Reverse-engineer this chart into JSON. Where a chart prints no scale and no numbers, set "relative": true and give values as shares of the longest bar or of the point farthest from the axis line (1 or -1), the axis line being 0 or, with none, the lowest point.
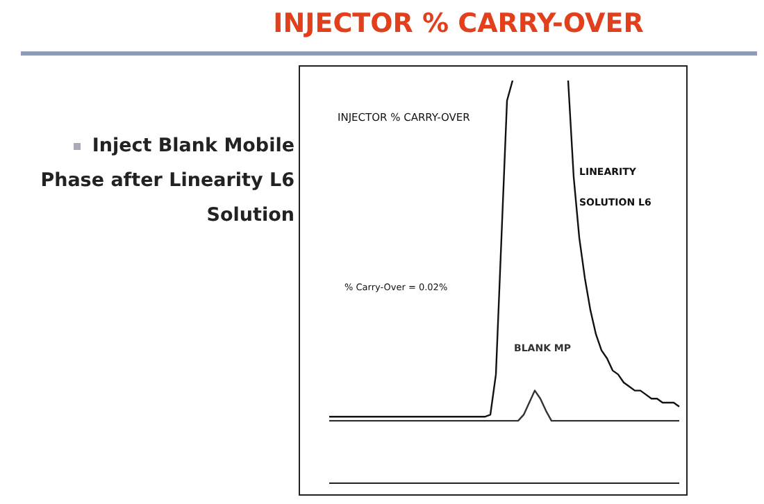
{
  "chart_data": {
    "type": "line",
    "title": "INJECTOR % CARRY-OVER",
    "relative": true,
    "tick_labels": false,
    "grid": false,
    "legend": false,
    "marker": "none",
    "line_style": "solid",
    "categories": [
      null,
      null,
      null,
      null,
      null,
      null,
      null,
      null,
      null,
      null,
      null,
      null,
      null,
      null,
      null,
      null,
      null,
      null,
      null,
      null,
      null,
      null,
      null,
      null,
      null,
      null,
      null,
      null,
      null,
      null,
      null,
      null,
      null,
      null,
      null,
      null,
      null,
      null,
      null,
      null,
      null,
      null,
      null,
      null,
      null,
      null,
      null,
      null,
      null,
      null,
      null,
      null,
      null,
      null,
      null,
      null,
      null,
      null,
      null,
      null,
      null,
      null,
      null,
      null
    ],
    "series": [
      {
        "name": "LINEARITY SOLUTION L6",
        "color": "#111111",
        "values": [
          0.165,
          0.165,
          0.165,
          0.165,
          0.165,
          0.165,
          0.165,
          0.165,
          0.165,
          0.165,
          0.165,
          0.165,
          0.165,
          0.165,
          0.165,
          0.165,
          0.165,
          0.165,
          0.165,
          0.165,
          0.165,
          0.165,
          0.165,
          0.165,
          0.165,
          0.165,
          0.165,
          0.165,
          0.165,
          0.17,
          0.27,
          0.61,
          0.95,
          1,
          null,
          null,
          null,
          null,
          null,
          null,
          null,
          null,
          null,
          1,
          0.76,
          0.61,
          0.51,
          0.43,
          0.37,
          0.33,
          0.31,
          0.28,
          0.27,
          0.25,
          0.24,
          0.23,
          0.23,
          0.22,
          0.21,
          0.21,
          0.2,
          0.2,
          0.2,
          0.19
        ]
      },
      {
        "name": "BLANK MP",
        "color": "#333333",
        "values": [
          0.155,
          0.155,
          0.155,
          0.155,
          0.155,
          0.155,
          0.155,
          0.155,
          0.155,
          0.155,
          0.155,
          0.155,
          0.155,
          0.155,
          0.155,
          0.155,
          0.155,
          0.155,
          0.155,
          0.155,
          0.155,
          0.155,
          0.155,
          0.155,
          0.155,
          0.155,
          0.155,
          0.155,
          0.155,
          0.155,
          0.155,
          0.155,
          0.155,
          0.155,
          0.155,
          0.17,
          0.2,
          0.23,
          0.21,
          0.18,
          0.155,
          0.155,
          0.155,
          0.155,
          0.155,
          0.155,
          0.155,
          0.155,
          0.155,
          0.155,
          0.155,
          0.155,
          0.155,
          0.155,
          0.155,
          0.155,
          0.155,
          0.155,
          0.155,
          0.155,
          0.155,
          0.155,
          0.155,
          0.155
        ]
      }
    ],
    "annotations": [
      "Inject Blank Mobile Phase after Linearity L6 Solution",
      "INJECTOR % CARRY-OVER",
      "% Carry-Over = 0.02%"
    ]
  }
}
